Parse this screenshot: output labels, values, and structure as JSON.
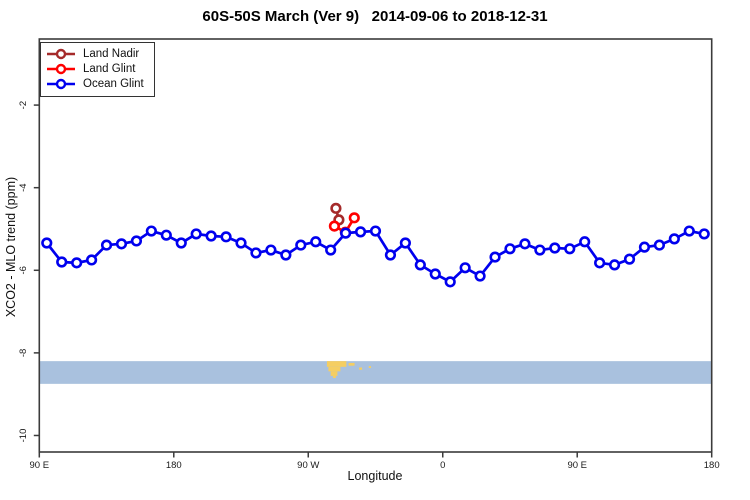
{
  "title": "60S-50S March (Ver 9)   2014-09-06 to 2018-12-31",
  "legend": {
    "items": [
      {
        "label": "Land Nadir",
        "color": "#A52A2A"
      },
      {
        "label": "Land Glint",
        "color": "#FF0000"
      },
      {
        "label": "Ocean Glint",
        "color": "#0000EE"
      }
    ]
  },
  "chart_data": {
    "type": "line",
    "title": "60S-50S March (Ver 9)   2014-09-06 to 2018-12-31",
    "xlabel": "Longitude",
    "ylabel": "XCO2 - MLO trend (ppm)",
    "xlim": [
      90,
      540
    ],
    "ylim": [
      -10.4,
      -0.4
    ],
    "grid": false,
    "legend_position": "top-left",
    "x_ticks": [
      {
        "value": 90,
        "label": "90 E"
      },
      {
        "value": 180,
        "label": "180"
      },
      {
        "value": 270,
        "label": "90 W"
      },
      {
        "value": 360,
        "label": "0"
      },
      {
        "value": 450,
        "label": "90 E"
      },
      {
        "value": 540,
        "label": "180"
      }
    ],
    "y_ticks": [
      {
        "value": -2,
        "label": "-2"
      },
      {
        "value": -4,
        "label": "-4"
      },
      {
        "value": -6,
        "label": "-6"
      },
      {
        "value": -8,
        "label": "-8"
      },
      {
        "value": -10,
        "label": "-10"
      }
    ],
    "series": [
      {
        "name": "Land Nadir",
        "color": "#A52A2A",
        "x": [
          288.5,
          290.5
        ],
        "y": [
          -4.5,
          -4.78
        ]
      },
      {
        "name": "Land Glint",
        "color": "#FF0000",
        "x": [
          287.5,
          294.8,
          300.8
        ],
        "y": [
          -4.93,
          -5.08,
          -4.73
        ]
      },
      {
        "name": "Ocean Glint",
        "color": "#0000EE",
        "x": [
          95,
          105,
          115,
          125,
          135,
          145,
          155,
          165,
          175,
          185,
          195,
          205,
          215,
          225,
          235,
          245,
          255,
          265,
          275,
          285,
          295,
          305,
          315,
          325,
          335,
          345,
          355,
          365,
          375,
          385,
          395,
          405,
          415,
          425,
          435,
          445,
          455,
          465,
          475,
          485,
          495,
          505,
          515,
          525,
          535
        ],
        "y": [
          -5.34,
          -5.8,
          -5.82,
          -5.75,
          -5.39,
          -5.36,
          -5.29,
          -5.05,
          -5.15,
          -5.34,
          -5.12,
          -5.17,
          -5.19,
          -5.34,
          -5.58,
          -5.51,
          -5.63,
          -5.39,
          -5.31,
          -5.51,
          -5.1,
          -5.07,
          -5.05,
          -5.63,
          -5.34,
          -5.87,
          -6.09,
          -6.28,
          -5.94,
          -6.14,
          -5.68,
          -5.48,
          -5.36,
          -5.51,
          -5.46,
          -5.48,
          -5.31,
          -5.82,
          -5.87,
          -5.73,
          -5.44,
          -5.39,
          -5.24,
          -5.05,
          -5.12
        ]
      }
    ],
    "map_strip": {
      "description": "latitude band 60S-50S world strip",
      "ocean_color": "#A9C1DE",
      "land_color": "#F5CE62",
      "y_top": -8.2,
      "y_bottom": -8.75,
      "land_patches": [
        {
          "lon0": 282.5,
          "lon1": 295.5,
          "f0": 0.0,
          "f1": 0.25
        },
        {
          "lon0": 283.5,
          "lon1": 291.5,
          "f0": 0.25,
          "f1": 0.45
        },
        {
          "lon0": 285.0,
          "lon1": 289.5,
          "f0": 0.45,
          "f1": 0.65
        },
        {
          "lon0": 286.5,
          "lon1": 288.5,
          "f0": 0.65,
          "f1": 0.74
        },
        {
          "lon0": 297.0,
          "lon1": 301.0,
          "f0": 0.08,
          "f1": 0.2
        },
        {
          "lon0": 304.0,
          "lon1": 306.0,
          "f0": 0.28,
          "f1": 0.38
        },
        {
          "lon0": 310.5,
          "lon1": 312.0,
          "f0": 0.22,
          "f1": 0.3
        }
      ]
    }
  }
}
